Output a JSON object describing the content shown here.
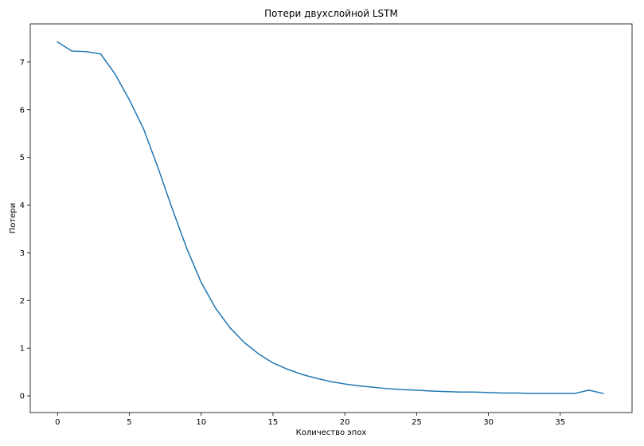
{
  "chart_data": {
    "type": "line",
    "title": "Потери двухслойной LSTM",
    "xlabel": "Количество эпох",
    "ylabel": "Потери",
    "xlim": [
      -1.9,
      40.0
    ],
    "ylim": [
      -0.35,
      7.8
    ],
    "x_ticks": [
      0,
      5,
      10,
      15,
      20,
      25,
      30,
      35
    ],
    "y_ticks": [
      0,
      1,
      2,
      3,
      4,
      5,
      6,
      7
    ],
    "grid": false,
    "legend": "none",
    "series": [
      {
        "color": "#1f77b4",
        "x": [
          0,
          1,
          2,
          3,
          4,
          5,
          6,
          7,
          8,
          9,
          10,
          11,
          12,
          13,
          14,
          15,
          16,
          17,
          18,
          19,
          20,
          21,
          22,
          23,
          24,
          25,
          26,
          27,
          28,
          29,
          30,
          31,
          32,
          33,
          34,
          35,
          36,
          37,
          38
        ],
        "values": [
          7.42,
          7.23,
          7.22,
          7.17,
          6.75,
          6.21,
          5.59,
          4.78,
          3.91,
          3.09,
          2.38,
          1.84,
          1.43,
          1.12,
          0.88,
          0.69,
          0.56,
          0.45,
          0.37,
          0.3,
          0.25,
          0.21,
          0.18,
          0.15,
          0.13,
          0.12,
          0.1,
          0.09,
          0.08,
          0.08,
          0.07,
          0.06,
          0.06,
          0.05,
          0.05,
          0.05,
          0.05,
          0.12,
          0.05
        ]
      }
    ]
  }
}
